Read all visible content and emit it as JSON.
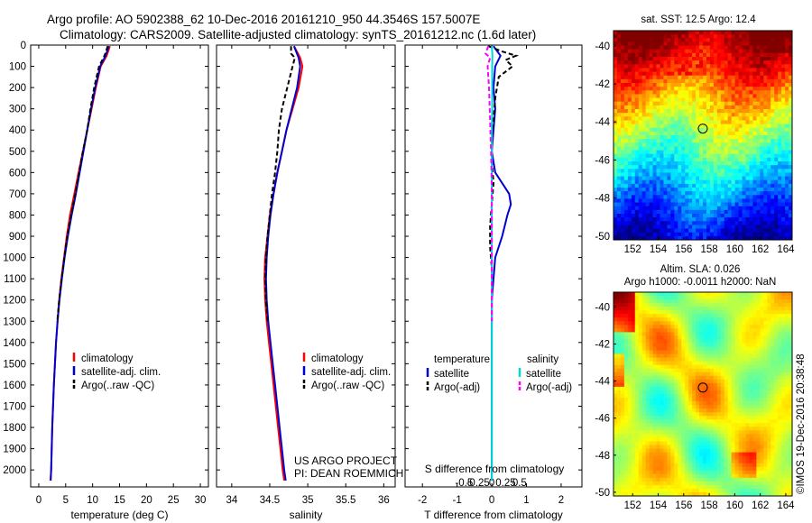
{
  "header": {
    "line1": "Argo profile: AO 5902388_62 10-Dec-2016 20161210_950 44.3546S 157.5007E",
    "line2": "Climatology: CARS2009. Satellite-adjusted climatology: synTS_20161212.nc (1.6d later)"
  },
  "side_text": "©IMOS 19-Dec-2016 20:38:48",
  "colors": {
    "climatology": "#ff0000",
    "satellite": "#0000d0",
    "argo": "#000000",
    "sal_satellite": "#00d8d8",
    "sal_argo": "#ff00ff"
  },
  "chart_data": [
    {
      "type": "line",
      "id": "temperature",
      "xlabel": "temperature (deg C)",
      "xlim": [
        -1.5,
        31.5
      ],
      "xticks": [
        0,
        5,
        10,
        15,
        20,
        25,
        30
      ],
      "ylim": [
        2080,
        0
      ],
      "yticks": [
        0,
        100,
        200,
        300,
        400,
        500,
        600,
        700,
        800,
        900,
        1000,
        1100,
        1200,
        1300,
        1400,
        1500,
        1600,
        1700,
        1800,
        1900,
        2000
      ],
      "legend": [
        "climatology",
        "satellite-adj. clim.",
        "Argo(..raw -QC)"
      ],
      "series": [
        {
          "name": "climatology",
          "color": "#ff0000",
          "dash": "none",
          "points": [
            [
              13.2,
              5
            ],
            [
              12.6,
              50
            ],
            [
              11.5,
              100
            ],
            [
              10.6,
              200
            ],
            [
              9.8,
              300
            ],
            [
              9.0,
              400
            ],
            [
              8.2,
              500
            ],
            [
              7.4,
              600
            ],
            [
              6.6,
              700
            ],
            [
              5.8,
              800
            ],
            [
              5.2,
              900
            ],
            [
              4.7,
              1000
            ],
            [
              4.2,
              1100
            ],
            [
              3.8,
              1200
            ],
            [
              3.5,
              1300
            ],
            [
              3.2,
              1400
            ],
            [
              3.0,
              1500
            ],
            [
              2.8,
              1600
            ],
            [
              2.65,
              1700
            ],
            [
              2.5,
              1800
            ],
            [
              2.4,
              1900
            ],
            [
              2.3,
              2000
            ],
            [
              2.2,
              2050
            ]
          ]
        },
        {
          "name": "satellite-adj. clim.",
          "color": "#0000d0",
          "dash": "none",
          "points": [
            [
              13.0,
              5
            ],
            [
              12.4,
              50
            ],
            [
              11.4,
              100
            ],
            [
              10.5,
              200
            ],
            [
              9.7,
              300
            ],
            [
              9.0,
              400
            ],
            [
              8.3,
              500
            ],
            [
              7.6,
              600
            ],
            [
              6.9,
              700
            ],
            [
              6.1,
              800
            ],
            [
              5.4,
              900
            ],
            [
              4.8,
              1000
            ],
            [
              4.3,
              1100
            ],
            [
              3.85,
              1200
            ],
            [
              3.5,
              1300
            ],
            [
              3.2,
              1400
            ],
            [
              3.0,
              1500
            ],
            [
              2.8,
              1600
            ],
            [
              2.65,
              1700
            ],
            [
              2.5,
              1800
            ],
            [
              2.4,
              1900
            ],
            [
              2.3,
              2000
            ],
            [
              2.2,
              2050
            ]
          ]
        },
        {
          "name": "Argo(..raw -QC)",
          "color": "#000000",
          "dash": "5,3",
          "points": [
            [
              12.8,
              5
            ],
            [
              12.2,
              50
            ],
            [
              11.2,
              100
            ],
            [
              10.3,
              200
            ],
            [
              9.6,
              300
            ],
            [
              9.0,
              400
            ],
            [
              8.2,
              500
            ],
            [
              7.5,
              600
            ],
            [
              6.8,
              700
            ],
            [
              6.0,
              800
            ],
            [
              5.3,
              900
            ],
            [
              4.75,
              1000
            ],
            [
              4.25,
              1100
            ],
            [
              3.8,
              1200
            ],
            [
              3.45,
              1300
            ]
          ]
        }
      ]
    },
    {
      "type": "line",
      "id": "salinity",
      "xlabel": "salinity",
      "xlim": [
        33.8,
        36.15
      ],
      "xticks": [
        34,
        34.5,
        35,
        35.5,
        36
      ],
      "xticklabels": [
        "34",
        "34.5",
        "35",
        "35.5",
        "36"
      ],
      "ylim": [
        2080,
        0
      ],
      "legend": [
        "climatology",
        "satellite-adj. clim.",
        "Argo(..raw -QC)"
      ],
      "annotation": [
        "US ARGO PROJECT",
        "PI: DEAN ROEMMICH"
      ],
      "series": [
        {
          "name": "climatology",
          "color": "#ff0000",
          "dash": "none",
          "points": [
            [
              34.82,
              5
            ],
            [
              34.9,
              60
            ],
            [
              34.93,
              100
            ],
            [
              34.88,
              200
            ],
            [
              34.8,
              300
            ],
            [
              34.72,
              400
            ],
            [
              34.66,
              500
            ],
            [
              34.6,
              600
            ],
            [
              34.55,
              700
            ],
            [
              34.5,
              800
            ],
            [
              34.47,
              900
            ],
            [
              34.44,
              1000
            ],
            [
              34.43,
              1100
            ],
            [
              34.44,
              1200
            ],
            [
              34.46,
              1300
            ],
            [
              34.49,
              1400
            ],
            [
              34.52,
              1500
            ],
            [
              34.55,
              1600
            ],
            [
              34.58,
              1700
            ],
            [
              34.61,
              1800
            ],
            [
              34.64,
              1900
            ],
            [
              34.67,
              2000
            ],
            [
              34.69,
              2050
            ]
          ]
        },
        {
          "name": "satellite-adj. clim.",
          "color": "#0000d0",
          "dash": "none",
          "points": [
            [
              34.82,
              5
            ],
            [
              34.88,
              60
            ],
            [
              34.9,
              100
            ],
            [
              34.86,
              200
            ],
            [
              34.79,
              300
            ],
            [
              34.72,
              400
            ],
            [
              34.66,
              500
            ],
            [
              34.6,
              600
            ],
            [
              34.55,
              700
            ],
            [
              34.51,
              800
            ],
            [
              34.48,
              900
            ],
            [
              34.46,
              1000
            ],
            [
              34.45,
              1100
            ],
            [
              34.46,
              1200
            ],
            [
              34.48,
              1300
            ],
            [
              34.51,
              1400
            ],
            [
              34.54,
              1500
            ],
            [
              34.57,
              1600
            ],
            [
              34.6,
              1700
            ],
            [
              34.63,
              1800
            ],
            [
              34.66,
              1900
            ],
            [
              34.69,
              2000
            ],
            [
              34.71,
              2050
            ]
          ]
        },
        {
          "name": "Argo(..raw -QC)",
          "color": "#000000",
          "dash": "5,3",
          "points": [
            [
              34.78,
              5
            ],
            [
              34.78,
              40
            ],
            [
              34.83,
              60
            ],
            [
              34.8,
              100
            ],
            [
              34.73,
              200
            ],
            [
              34.66,
              300
            ],
            [
              34.62,
              400
            ],
            [
              34.6,
              500
            ],
            [
              34.57,
              600
            ],
            [
              34.53,
              700
            ],
            [
              34.5,
              800
            ],
            [
              34.47,
              900
            ],
            [
              34.45,
              1000
            ],
            [
              34.44,
              1100
            ],
            [
              34.45,
              1200
            ],
            [
              34.47,
              1300
            ]
          ]
        }
      ]
    },
    {
      "type": "line",
      "id": "difference",
      "xlabel_top": "S difference from climatology",
      "xlabel": "T difference from climatology",
      "xlim": [
        -2.5,
        2.6
      ],
      "xticks": [
        -2,
        -1,
        0,
        1,
        2
      ],
      "xticklabels": [
        "-2",
        "-1",
        "0",
        "1",
        "2"
      ],
      "sticks": [
        -0.5,
        -0.25,
        0,
        0.25,
        0.5
      ],
      "sticklabels": [
        "-0.5",
        "-0.25",
        "0",
        "0.25",
        "0.5"
      ],
      "ylim": [
        2080,
        0
      ],
      "legend_left": {
        "title": "temperature",
        "items": [
          "satellite",
          "Argo(-adj)"
        ]
      },
      "legend_right": {
        "title": "salinity",
        "items": [
          "satellite",
          "Argo(-adj)"
        ]
      },
      "series": [
        {
          "name": "T satellite",
          "color": "#0000d0",
          "dash": "none",
          "points": [
            [
              0.05,
              5
            ],
            [
              0.25,
              50
            ],
            [
              0.1,
              100
            ],
            [
              0.05,
              200
            ],
            [
              0.1,
              300
            ],
            [
              0.05,
              400
            ],
            [
              0.0,
              500
            ],
            [
              0.1,
              600
            ],
            [
              0.5,
              700
            ],
            [
              0.55,
              750
            ],
            [
              0.45,
              800
            ],
            [
              0.3,
              900
            ],
            [
              0.1,
              1000
            ],
            [
              0.05,
              1100
            ],
            [
              0.0,
              1200
            ],
            [
              0.0,
              1300
            ],
            [
              0.0,
              1500
            ],
            [
              0.0,
              1700
            ],
            [
              0.0,
              2050
            ]
          ]
        },
        {
          "name": "T Argo(-adj)",
          "color": "#000000",
          "dash": "5,3",
          "points": [
            [
              -0.1,
              5
            ],
            [
              0.3,
              30
            ],
            [
              0.7,
              50
            ],
            [
              0.4,
              70
            ],
            [
              0.6,
              100
            ],
            [
              0.2,
              150
            ],
            [
              0.1,
              250
            ],
            [
              0.05,
              350
            ],
            [
              0.0,
              450
            ],
            [
              0.0,
              550
            ],
            [
              0.05,
              650
            ],
            [
              0.0,
              750
            ],
            [
              -0.05,
              850
            ],
            [
              -0.05,
              950
            ],
            [
              0.0,
              1050
            ],
            [
              0.0,
              1150
            ],
            [
              0.0,
              1300
            ]
          ]
        },
        {
          "name": "S satellite",
          "color": "#00d8d8",
          "dash": "none",
          "points": [
            [
              0.0,
              5
            ],
            [
              0.02,
              50
            ],
            [
              0.01,
              100
            ],
            [
              0.01,
              200
            ],
            [
              0.01,
              300
            ],
            [
              0.0,
              400
            ],
            [
              0.0,
              600
            ],
            [
              0.0,
              800
            ],
            [
              0.0,
              1000
            ],
            [
              0.0,
              1200
            ],
            [
              0.0,
              1500
            ],
            [
              0.0,
              1800
            ],
            [
              0.0,
              2050
            ]
          ]
        },
        {
          "name": "S Argo(-adj)",
          "color": "#ff00ff",
          "dash": "5,3",
          "points": [
            [
              -0.1,
              5
            ],
            [
              -0.18,
              40
            ],
            [
              -0.05,
              60
            ],
            [
              -0.12,
              100
            ],
            [
              -0.1,
              150
            ],
            [
              -0.08,
              200
            ],
            [
              -0.06,
              300
            ],
            [
              -0.04,
              400
            ],
            [
              -0.02,
              500
            ],
            [
              -0.01,
              600
            ],
            [
              0.0,
              700
            ],
            [
              0.0,
              800
            ],
            [
              0.0,
              900
            ],
            [
              0.0,
              1000
            ],
            [
              0.0,
              1100
            ],
            [
              0.0,
              1200
            ],
            [
              0.0,
              1300
            ]
          ]
        }
      ]
    },
    {
      "type": "heatmap",
      "id": "sst_map",
      "title": "sat. SST: 12.5 Argo: 12.4",
      "xlim": [
        150.5,
        164.5
      ],
      "ylim": [
        -50.2,
        -39.2
      ],
      "xticks": [
        152,
        154,
        156,
        158,
        160,
        162,
        164
      ],
      "yticks": [
        -40,
        -42,
        -44,
        -46,
        -48,
        -50
      ],
      "float_position": [
        157.5,
        -44.35
      ]
    },
    {
      "type": "heatmap",
      "id": "sla_map",
      "title_line1": "Altim. SLA: 0.026",
      "title_line2": "Argo h1000: -0.0011 h2000: NaN",
      "xlim": [
        150.5,
        164.5
      ],
      "ylim": [
        -50.2,
        -39.2
      ],
      "xticks": [
        152,
        154,
        156,
        158,
        160,
        162,
        164
      ],
      "yticks": [
        -40,
        -42,
        -44,
        -46,
        -48,
        -50
      ],
      "float_position": [
        157.5,
        -44.35
      ]
    }
  ]
}
